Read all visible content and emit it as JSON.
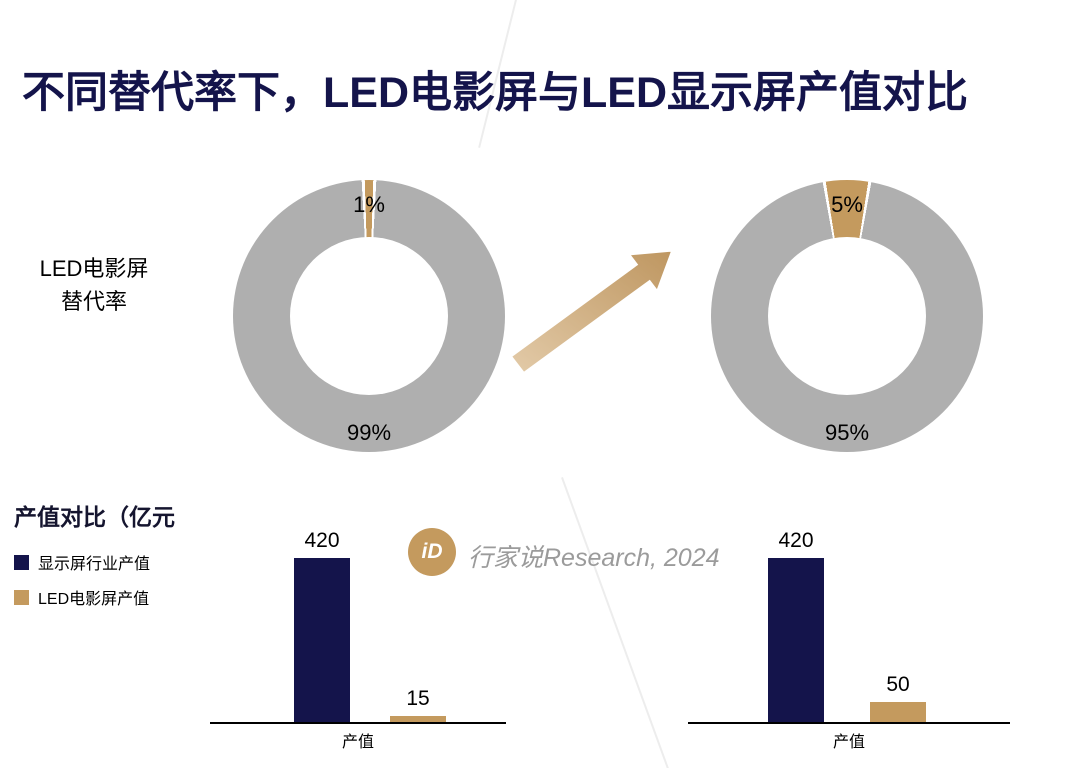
{
  "title": "不同替代率下，LED电影屏与LED显示屏产值对比",
  "colors": {
    "navy": "#14144B",
    "gold": "#C49A5E",
    "gray": "#AFAFAF",
    "watermark_gray": "#9B9B9B"
  },
  "replacement": {
    "label_line1": "LED电影屏",
    "label_line2": "替代率",
    "left": {
      "minor_pct": 1,
      "minor_label": "1%",
      "major_label": "99%"
    },
    "right": {
      "minor_pct": 5,
      "minor_label": "5%",
      "major_label": "95%"
    }
  },
  "output": {
    "section_label": "产值对比（亿元",
    "legend": [
      {
        "label": "显示屏行业产值",
        "color": "#14144B"
      },
      {
        "label": "LED电影屏产值",
        "color": "#C49A5E"
      }
    ],
    "left": {
      "bars": [
        {
          "label": "420",
          "value": 420
        },
        {
          "label": "15",
          "value": 15
        }
      ],
      "axis_label": "产值"
    },
    "right": {
      "bars": [
        {
          "label": "420",
          "value": 420
        },
        {
          "label": "50",
          "value": 50
        }
      ],
      "axis_label": "产值"
    }
  },
  "watermark": {
    "logo_text": "iD",
    "text": "行家说Research, 2024"
  },
  "chart_data": [
    {
      "type": "pie",
      "title": "LED电影屏替代率（左）",
      "labels": [
        "LED电影屏",
        "LED显示屏"
      ],
      "values": [
        1,
        99
      ],
      "annotations": [
        "1%",
        "99%"
      ],
      "colors": [
        "#C49A5E",
        "#AFAFAF"
      ]
    },
    {
      "type": "pie",
      "title": "LED电影屏替代率（右）",
      "labels": [
        "LED电影屏",
        "LED显示屏"
      ],
      "values": [
        5,
        95
      ],
      "annotations": [
        "5%",
        "95%"
      ],
      "colors": [
        "#C49A5E",
        "#AFAFAF"
      ]
    },
    {
      "type": "bar",
      "title": "产值对比（亿元）左",
      "categories": [
        "产值"
      ],
      "series": [
        {
          "name": "显示屏行业产值",
          "values": [
            420
          ]
        },
        {
          "name": "LED电影屏产值",
          "values": [
            15
          ]
        }
      ],
      "xlabel": "产值",
      "ylabel": "亿元",
      "ylim": [
        0,
        450
      ],
      "grid": false,
      "legend_position": "left"
    },
    {
      "type": "bar",
      "title": "产值对比（亿元）右",
      "categories": [
        "产值"
      ],
      "series": [
        {
          "name": "显示屏行业产值",
          "values": [
            420
          ]
        },
        {
          "name": "LED电影屏产值",
          "values": [
            50
          ]
        }
      ],
      "xlabel": "产值",
      "ylabel": "亿元",
      "ylim": [
        0,
        450
      ],
      "grid": false,
      "legend_position": "left"
    }
  ]
}
